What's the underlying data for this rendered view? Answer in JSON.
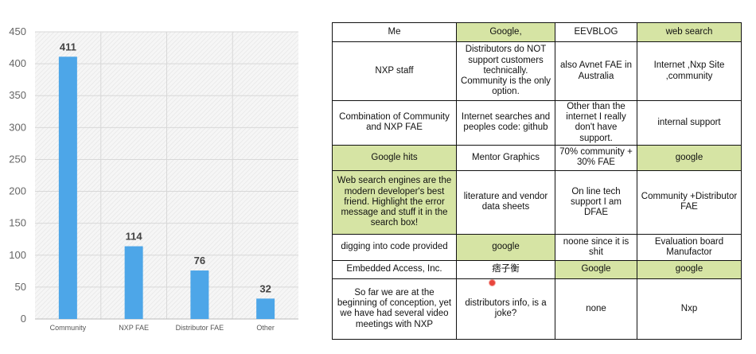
{
  "chart_data": {
    "type": "bar",
    "categories": [
      "Community",
      "NXP FAE",
      "Distributor FAE",
      "Other"
    ],
    "values": [
      411,
      114,
      76,
      32
    ],
    "ylim": [
      0,
      450
    ],
    "yticks": [
      0,
      50,
      100,
      150,
      200,
      250,
      300,
      350,
      400,
      450
    ],
    "grid": true,
    "bar_color": "#4da6e8"
  },
  "table": {
    "rows": [
      [
        {
          "text": "Me",
          "hl": false
        },
        {
          "text": "Google,",
          "hl": true
        },
        {
          "text": "EEVBLOG",
          "hl": false
        },
        {
          "text": "web search",
          "hl": true
        }
      ],
      [
        {
          "text": "NXP staff",
          "hl": false
        },
        {
          "text": "Distributors do NOT support customers technically. Community is the only option.",
          "hl": false
        },
        {
          "text": "also Avnet FAE in Australia",
          "hl": false
        },
        {
          "text": "Internet ,Nxp Site ,community",
          "hl": false
        }
      ],
      [
        {
          "text": "Combination of Community and NXP FAE",
          "hl": false
        },
        {
          "text": "Internet searches and peoples code: github",
          "hl": false
        },
        {
          "text": "Other than the internet I really don't have support.",
          "hl": false
        },
        {
          "text": "internal support",
          "hl": false
        }
      ],
      [
        {
          "text": "Google hits",
          "hl": true
        },
        {
          "text": "Mentor Graphics",
          "hl": false
        },
        {
          "text": "70% community + 30% FAE",
          "hl": false
        },
        {
          "text": "google",
          "hl": true
        }
      ],
      [
        {
          "text": "Web search engines are the modern developer's best friend.  Highlight the error message and stuff it in the search box!",
          "hl": true
        },
        {
          "text": "literature and vendor data sheets",
          "hl": false
        },
        {
          "text": "On line tech support I am DFAE",
          "hl": false
        },
        {
          "text": "Community +Distributor FAE",
          "hl": false
        }
      ],
      [
        {
          "text": "digging into code provided",
          "hl": false
        },
        {
          "text": "google",
          "hl": true
        },
        {
          "text": "noone since it is shit",
          "hl": false
        },
        {
          "text": "Evaluation board Manufactor",
          "hl": false
        }
      ],
      [
        {
          "text": "Embedded Access, Inc.",
          "hl": false
        },
        {
          "text": "痞子衡",
          "hl": false
        },
        {
          "text": "Google",
          "hl": true
        },
        {
          "text": "google",
          "hl": true
        }
      ],
      [
        {
          "text": "So far we are at the beginning of conception, yet we have had several video meetings with NXP",
          "hl": false
        },
        {
          "text": "distributors info, is a joke?",
          "hl": false
        },
        {
          "text": "none",
          "hl": false
        },
        {
          "text": "Nxp",
          "hl": false
        }
      ]
    ]
  }
}
